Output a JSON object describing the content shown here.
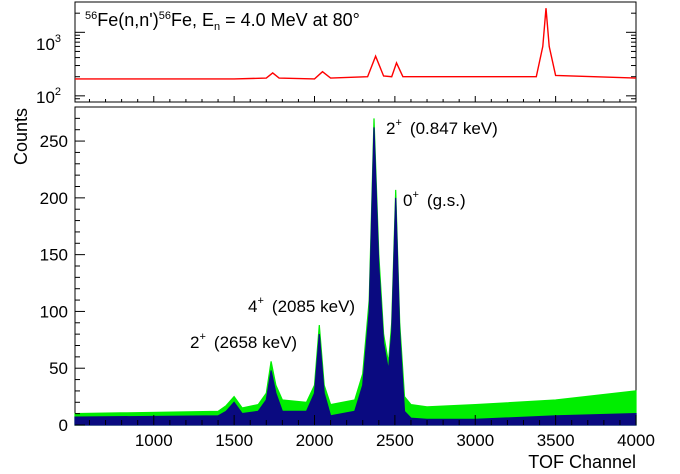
{
  "chart_data": [
    {
      "type": "line",
      "panel": "top",
      "title": {
        "prefix_sup": "56",
        "part1": "Fe(n,n')",
        "mid_sup": "56",
        "part2": "Fe, E",
        "sub": "n",
        "part3": " = 4.0 MeV at 80°"
      },
      "yscale": "log",
      "ylim": [
        80,
        3000
      ],
      "xlim": [
        510,
        4000
      ],
      "yticks": [
        {
          "value": 100,
          "base": "10",
          "exp": "2"
        },
        {
          "value": 1000,
          "base": "10",
          "exp": "3"
        }
      ],
      "series": [
        {
          "color": "#ff0000",
          "x": [
            510,
            1500,
            1700,
            1740,
            1780,
            2000,
            2050,
            2100,
            2330,
            2380,
            2430,
            2480,
            2510,
            2550,
            3380,
            3420,
            3440,
            3460,
            3500,
            4000
          ],
          "y": [
            185,
            185,
            190,
            230,
            190,
            185,
            240,
            190,
            200,
            420,
            205,
            200,
            330,
            200,
            200,
            600,
            2400,
            600,
            210,
            190
          ]
        }
      ]
    },
    {
      "type": "line",
      "panel": "bottom",
      "xlabel": "TOF Channel",
      "ylabel": "Counts",
      "xlim": [
        510,
        4000
      ],
      "ylim": [
        0,
        280
      ],
      "xticks": [
        1000,
        1500,
        2000,
        2500,
        3000,
        3500,
        4000
      ],
      "yticks": [
        0,
        50,
        100,
        150,
        200,
        250
      ],
      "series": [
        {
          "color": "#00ee00",
          "x": [
            510,
            1400,
            1450,
            1500,
            1550,
            1650,
            1700,
            1730,
            1760,
            1800,
            1950,
            2000,
            2030,
            2060,
            2100,
            2250,
            2300,
            2340,
            2370,
            2400,
            2430,
            2460,
            2480,
            2505,
            2530,
            2560,
            2600,
            2700,
            3000,
            3500,
            4000
          ],
          "y": [
            10,
            12,
            17,
            25,
            15,
            18,
            28,
            56,
            35,
            22,
            20,
            35,
            88,
            35,
            18,
            22,
            45,
            110,
            270,
            150,
            80,
            55,
            90,
            207,
            90,
            25,
            18,
            16,
            18,
            22,
            30
          ]
        },
        {
          "color": "#0a0a80",
          "x": [
            510,
            1400,
            1450,
            1500,
            1550,
            1650,
            1700,
            1730,
            1760,
            1800,
            1950,
            2000,
            2030,
            2060,
            2100,
            2250,
            2300,
            2340,
            2370,
            2400,
            2430,
            2460,
            2480,
            2505,
            2530,
            2560,
            2600,
            2700,
            3000,
            3500,
            4000
          ],
          "y": [
            7,
            8,
            12,
            20,
            10,
            12,
            22,
            48,
            28,
            12,
            12,
            28,
            80,
            28,
            8,
            12,
            35,
            100,
            262,
            140,
            72,
            48,
            82,
            200,
            82,
            12,
            6,
            5,
            5,
            8,
            10
          ]
        }
      ],
      "annotations": [
        {
          "level": "2",
          "parity": "+",
          "label": "(0.847 keV)"
        },
        {
          "level": "0",
          "parity": "+",
          "label": "(g.s.)"
        },
        {
          "level": "4",
          "parity": "+",
          "label": "(2085 keV)"
        },
        {
          "level": "2",
          "parity": "+",
          "label": "(2658 keV)"
        }
      ]
    }
  ]
}
